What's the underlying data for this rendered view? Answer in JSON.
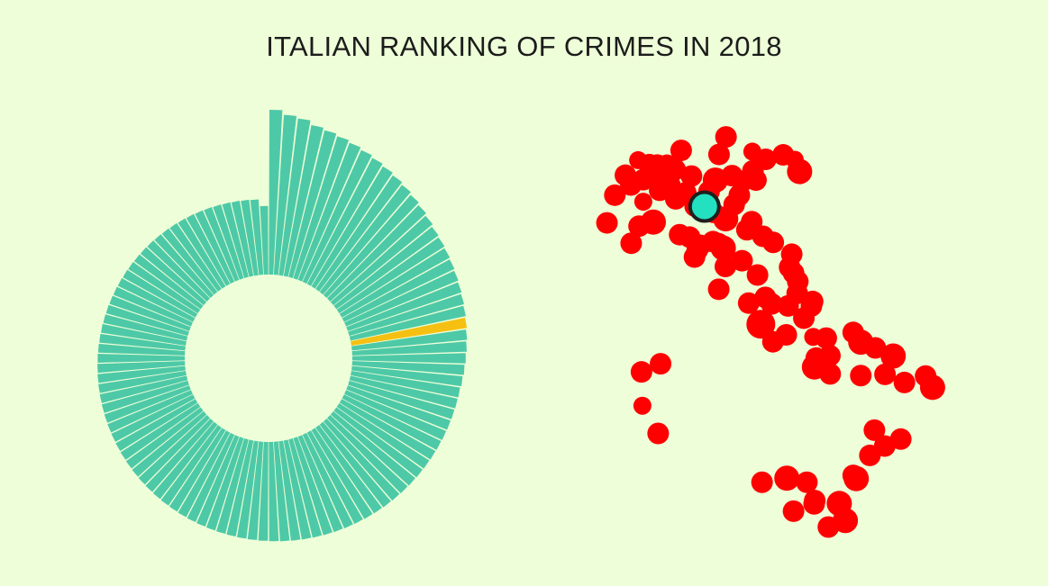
{
  "page": {
    "title": "ITALIAN RANKING OF CRIMES IN 2018",
    "background": "#eefed8"
  },
  "chart_data": [
    {
      "type": "radial-bar",
      "description_colors": {
        "bar": "#4ec9a7",
        "highlight": "#f5c012"
      },
      "n_bars": 106,
      "highlight_index": 23,
      "values": [
        7200,
        7000,
        6900,
        6700,
        6600,
        6500,
        6400,
        6300,
        6200,
        6100,
        6000,
        5900,
        5800,
        5700,
        5600,
        5500,
        5450,
        5400,
        5350,
        5300,
        5250,
        5200,
        5150,
        5100,
        5050,
        5000,
        4950,
        4900,
        4850,
        4800,
        4780,
        4760,
        4740,
        4720,
        4700,
        4680,
        4660,
        4640,
        4620,
        4600,
        4580,
        4560,
        4540,
        4520,
        4500,
        4480,
        4460,
        4440,
        4420,
        4400,
        4380,
        4360,
        4340,
        4320,
        4300,
        4280,
        4260,
        4240,
        4220,
        4200,
        4180,
        4160,
        4140,
        4120,
        4100,
        4080,
        4060,
        4040,
        4020,
        4000,
        3980,
        3960,
        3940,
        3920,
        3900,
        3880,
        3860,
        3840,
        3820,
        3800,
        3780,
        3760,
        3740,
        3720,
        3700,
        3680,
        3660,
        3640,
        3620,
        3600,
        3580,
        3560,
        3540,
        3520,
        3500,
        3480,
        3460,
        3440,
        3420,
        3400,
        3380,
        3360,
        3340,
        3320,
        3300,
        3000
      ]
    },
    {
      "type": "scatter",
      "description_colors": {
        "point": "#ff0000",
        "highlight": "#22e0c0"
      },
      "x_unit": "longitude",
      "y_unit": "latitude",
      "points": [
        [
          7.68,
          45.07,
          12
        ],
        [
          7.42,
          44.39,
          12
        ],
        [
          8.62,
          44.91,
          10
        ],
        [
          8.03,
          45.56,
          12
        ],
        [
          8.62,
          45.45,
          12
        ],
        [
          8.45,
          45.93,
          10
        ],
        [
          8.21,
          45.32,
          12
        ],
        [
          8.82,
          45.82,
          12
        ],
        [
          9.08,
          45.81,
          12
        ],
        [
          9.19,
          45.46,
          14
        ],
        [
          9.4,
          45.85,
          10
        ],
        [
          9.67,
          45.7,
          12
        ],
        [
          10.21,
          45.54,
          12
        ],
        [
          9.16,
          45.19,
          12
        ],
        [
          10.02,
          45.13,
          12
        ],
        [
          10.79,
          45.16,
          12
        ],
        [
          9.87,
          46.17,
          12
        ],
        [
          9.5,
          45.31,
          12
        ],
        [
          9.27,
          45.58,
          12
        ],
        [
          11.12,
          46.07,
          12
        ],
        [
          11.35,
          46.5,
          12
        ],
        [
          11.0,
          45.44,
          14
        ],
        [
          11.55,
          45.55,
          12
        ],
        [
          11.88,
          45.41,
          12
        ],
        [
          12.24,
          45.67,
          12
        ],
        [
          12.34,
          45.44,
          12
        ],
        [
          12.22,
          46.14,
          10
        ],
        [
          11.79,
          45.07,
          12
        ],
        [
          13.24,
          46.06,
          12
        ],
        [
          12.66,
          45.95,
          12
        ],
        [
          13.62,
          45.94,
          10
        ],
        [
          13.78,
          45.65,
          14
        ],
        [
          8.95,
          44.41,
          14
        ],
        [
          8.22,
          43.89,
          12
        ],
        [
          8.48,
          44.31,
          12
        ],
        [
          9.82,
          44.1,
          12
        ],
        [
          9.69,
          44.98,
          12
        ],
        [
          10.33,
          44.8,
          12
        ],
        [
          10.63,
          44.7,
          12
        ],
        [
          10.92,
          44.65,
          12
        ],
        [
          11.34,
          44.49,
          14
        ],
        [
          11.62,
          44.84,
          12
        ],
        [
          12.2,
          44.42,
          12
        ],
        [
          12.04,
          44.22,
          12
        ],
        [
          12.57,
          44.06,
          12
        ],
        [
          10.15,
          44.04,
          12
        ],
        [
          10.5,
          43.84,
          12
        ],
        [
          10.92,
          43.93,
          12
        ],
        [
          11.26,
          43.77,
          14
        ],
        [
          10.31,
          43.55,
          12
        ],
        [
          10.4,
          43.72,
          12
        ],
        [
          11.1,
          43.88,
          12
        ],
        [
          11.33,
          43.32,
          12
        ],
        [
          11.88,
          43.46,
          12
        ],
        [
          11.11,
          42.76,
          12
        ],
        [
          12.39,
          43.11,
          12
        ],
        [
          12.65,
          42.56,
          12
        ],
        [
          12.91,
          43.91,
          12
        ],
        [
          13.52,
          43.62,
          12
        ],
        [
          13.45,
          43.3,
          12
        ],
        [
          13.72,
          42.95,
          12
        ],
        [
          13.58,
          43.16,
          12
        ],
        [
          12.1,
          42.42,
          12
        ],
        [
          12.5,
          41.9,
          16
        ],
        [
          12.86,
          42.4,
          12
        ],
        [
          12.9,
          41.47,
          12
        ],
        [
          13.34,
          41.64,
          12
        ],
        [
          13.4,
          42.35,
          12
        ],
        [
          13.7,
          42.66,
          12
        ],
        [
          14.21,
          42.46,
          12
        ],
        [
          14.17,
          42.35,
          12
        ],
        [
          13.92,
          42.05,
          12
        ],
        [
          14.66,
          41.56,
          12
        ],
        [
          14.23,
          41.59,
          10
        ],
        [
          14.33,
          41.07,
          12
        ],
        [
          14.27,
          40.85,
          14
        ],
        [
          14.78,
          41.13,
          12
        ],
        [
          14.79,
          40.68,
          12
        ],
        [
          15.8,
          41.46,
          14
        ],
        [
          15.55,
          41.7,
          12
        ],
        [
          16.28,
          41.32,
          12
        ],
        [
          16.87,
          41.12,
          14
        ],
        [
          17.24,
          40.47,
          12
        ],
        [
          17.94,
          40.63,
          12
        ],
        [
          18.17,
          40.35,
          14
        ],
        [
          15.8,
          40.64,
          12
        ],
        [
          16.6,
          40.67,
          12
        ],
        [
          16.25,
          39.3,
          12
        ],
        [
          17.12,
          39.08,
          12
        ],
        [
          16.59,
          38.91,
          12
        ],
        [
          16.1,
          38.68,
          12
        ],
        [
          15.65,
          38.11,
          14
        ],
        [
          13.36,
          38.12,
          14
        ],
        [
          12.54,
          38.02,
          12
        ],
        [
          14.02,
          38.02,
          12
        ],
        [
          13.58,
          37.31,
          12
        ],
        [
          14.26,
          37.49,
          12
        ],
        [
          14.28,
          37.57,
          12
        ],
        [
          15.09,
          37.5,
          14
        ],
        [
          15.55,
          38.19,
          12
        ],
        [
          15.29,
          37.08,
          14
        ],
        [
          14.73,
          36.92,
          12
        ],
        [
          9.19,
          40.93,
          12
        ],
        [
          8.56,
          40.73,
          12
        ],
        [
          9.11,
          39.22,
          12
        ],
        [
          8.59,
          39.9,
          10
        ]
      ],
      "highlight_point": [
        10.64,
        44.79
      ]
    }
  ]
}
